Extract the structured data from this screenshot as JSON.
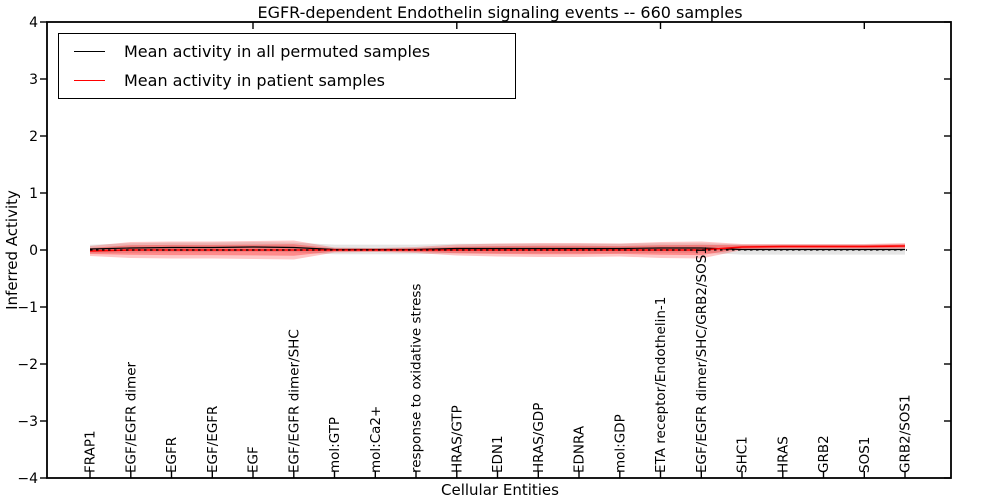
{
  "figure": {
    "title": "EGFR-dependent Endothelin signaling events -- 660 samples",
    "xlabel": "Cellular Entities",
    "ylabel": "Inferred Activity"
  },
  "legend": {
    "items": [
      {
        "label": "Mean activity in all permuted samples",
        "color": "#000000"
      },
      {
        "label": "Mean activity in patient samples",
        "color": "#ff0000"
      }
    ]
  },
  "chart_data": {
    "type": "line",
    "title": "EGFR-dependent Endothelin signaling events -- 660 samples",
    "xlabel": "Cellular Entities",
    "ylabel": "Inferred Activity",
    "ylim": [
      -4,
      4
    ],
    "yticks": [
      4,
      3,
      2,
      1,
      0,
      -1,
      -2,
      -3,
      -4
    ],
    "ytick_labels": [
      "4",
      "3",
      "2",
      "1",
      "0",
      "−1",
      "−2",
      "−3",
      "−4"
    ],
    "grid": false,
    "legend_position": "upper left",
    "categories": [
      "FRAP1",
      "EGF/EGFR dimer",
      "EGFR",
      "EGF/EGFR",
      "EGF",
      "EGF/EGFR dimer/SHC",
      "mol:GTP",
      "mol:Ca2+",
      "response to oxidative stress",
      "HRAS/GTP",
      "EDN1",
      "HRAS/GDP",
      "EDNRA",
      "mol:GDP",
      "ETA receptor/Endothelin-1",
      "EGF/EGFR dimer/SHC/GRB2/SOS1",
      "SHC1",
      "HRAS",
      "GRB2",
      "SOS1",
      "GRB2/SOS1"
    ],
    "series": [
      {
        "name": "Mean activity in all permuted samples",
        "color": "#000000",
        "style": "solid",
        "values": [
          0.018,
          0.035,
          0.044,
          0.044,
          0.053,
          0.044,
          0.009,
          0.009,
          0.009,
          0.026,
          0.026,
          0.026,
          0.026,
          0.026,
          0.035,
          0.035,
          0.009,
          0.009,
          0.009,
          0.009,
          0.009
        ]
      },
      {
        "name": "Mean activity in patient samples",
        "color": "#ff0000",
        "style": "solid",
        "values": [
          -0.018,
          0.0,
          0.0,
          0.0,
          0.0,
          0.0,
          0.0,
          0.0,
          0.0,
          0.0,
          0.0,
          0.0,
          0.0,
          0.0,
          0.0,
          0.0,
          0.053,
          0.061,
          0.061,
          0.061,
          0.07
        ]
      }
    ],
    "bands": [
      {
        "name": "permuted-std-band",
        "color": "rgba(0,0,0,0.10)",
        "center_series": 0,
        "half_widths": [
          0.075,
          0.085,
          0.085,
          0.085,
          0.085,
          0.085,
          0.085,
          0.085,
          0.085,
          0.085,
          0.085,
          0.085,
          0.085,
          0.085,
          0.085,
          0.085,
          0.09,
          0.09,
          0.09,
          0.09,
          0.09
        ]
      },
      {
        "name": "patient-std-outer-band",
        "color": "rgba(255,0,0,0.22)",
        "center_series": 1,
        "half_widths": [
          0.088,
          0.14,
          0.149,
          0.149,
          0.158,
          0.167,
          0.044,
          0.035,
          0.053,
          0.096,
          0.114,
          0.123,
          0.123,
          0.114,
          0.14,
          0.149,
          0.053,
          0.044,
          0.044,
          0.044,
          0.053
        ]
      },
      {
        "name": "patient-std-inner-band",
        "color": "rgba(255,0,0,0.30)",
        "center_series": 1,
        "half_widths": [
          0.053,
          0.084,
          0.089,
          0.089,
          0.095,
          0.1,
          0.026,
          0.021,
          0.032,
          0.058,
          0.068,
          0.074,
          0.074,
          0.068,
          0.084,
          0.089,
          0.032,
          0.026,
          0.026,
          0.026,
          0.032
        ]
      }
    ],
    "zero_line": {
      "y": 0,
      "style": "dotted",
      "color": "#000000"
    },
    "top_tick_category_indices": [
      4,
      9,
      14,
      19
    ]
  }
}
